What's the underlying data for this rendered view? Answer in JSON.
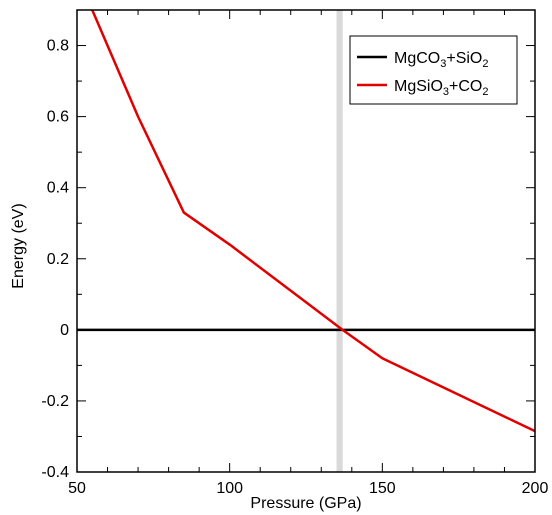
{
  "chart_data": {
    "type": "line",
    "xlabel": "Pressure (GPa)",
    "ylabel": "Energy (eV)",
    "xlim": [
      50,
      200
    ],
    "ylim": [
      -0.4,
      0.9
    ],
    "x_ticks": [
      50,
      100,
      150,
      200
    ],
    "x_tick_labels": [
      "50",
      "100",
      "150",
      "200"
    ],
    "y_ticks": [
      -0.4,
      -0.2,
      0,
      0.2,
      0.4,
      0.6,
      0.8
    ],
    "y_tick_labels": [
      "-0.4",
      "-0.2",
      "0",
      "0.2",
      "0.4",
      "0.6",
      "0.8"
    ],
    "grid": false,
    "legend_position": "top-right",
    "transition_band": {
      "x_start": 135,
      "x_end": 137,
      "color": "#d9d9d9"
    },
    "series": [
      {
        "name": "MgCO3+SiO2",
        "legend_parts": {
          "a": "MgCO",
          "a_sub": "3",
          "b": "+SiO",
          "b_sub": "2"
        },
        "color": "#000000",
        "x": [
          50,
          200
        ],
        "y": [
          0,
          0
        ]
      },
      {
        "name": "MgSiO3+CO2",
        "legend_parts": {
          "a": "MgSiO",
          "a_sub": "3",
          "b": "+CO",
          "b_sub": "2"
        },
        "color": "#e00000",
        "x": [
          55,
          70,
          85,
          100,
          137,
          150,
          200
        ],
        "y": [
          0.9,
          0.6,
          0.33,
          0.24,
          0.0,
          -0.08,
          -0.285
        ]
      }
    ]
  }
}
